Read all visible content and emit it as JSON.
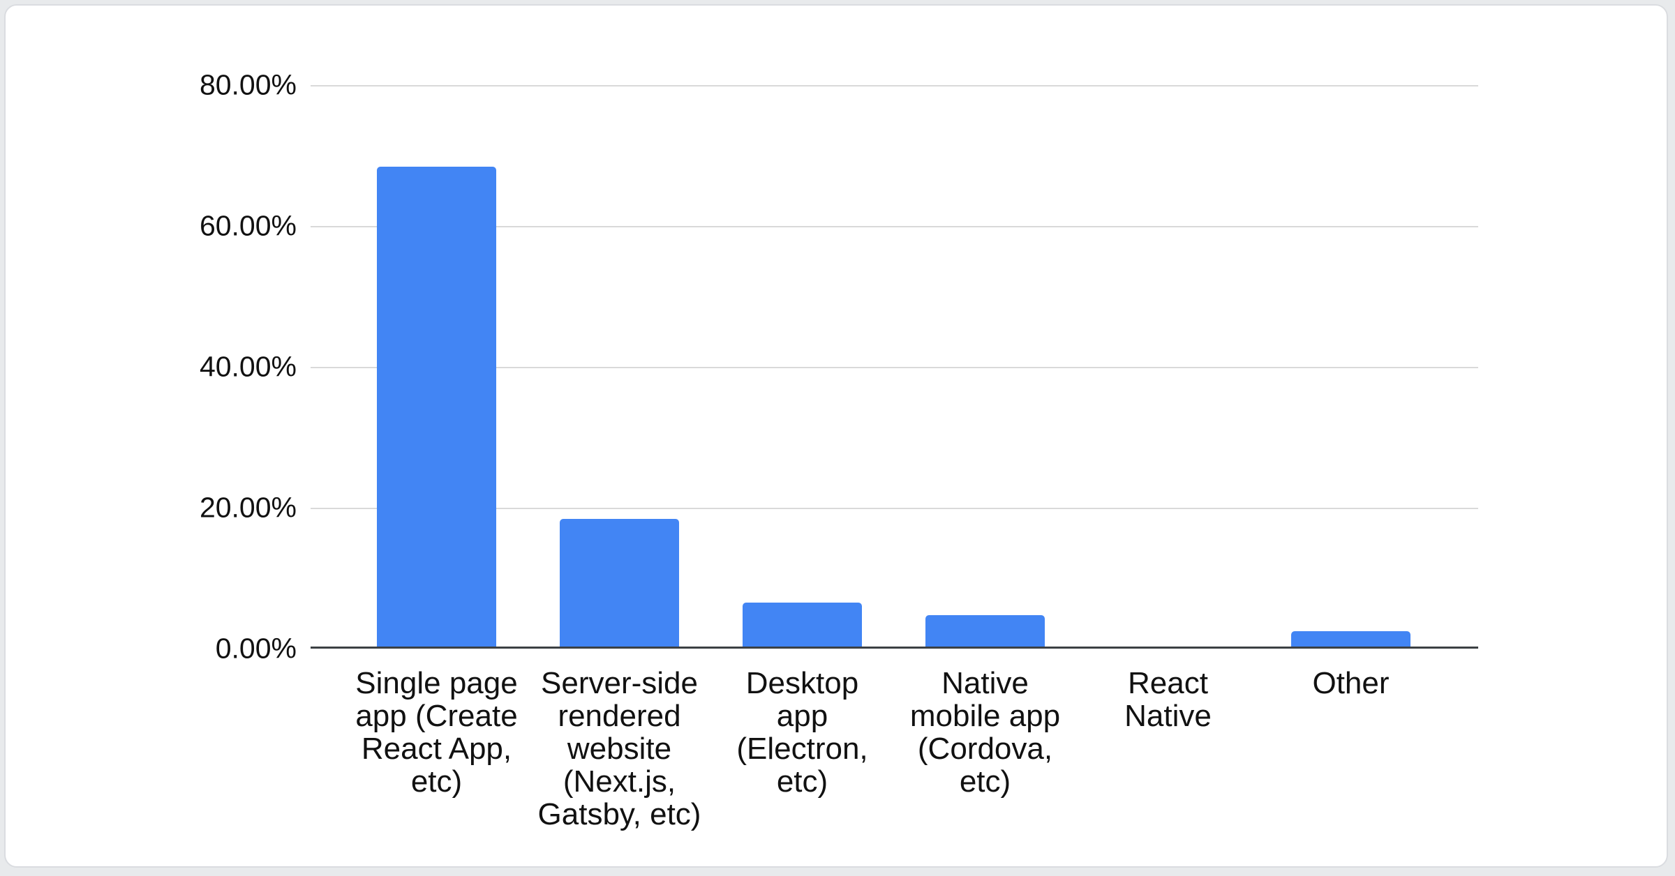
{
  "chart_data": {
    "type": "bar",
    "title": "",
    "xlabel": "",
    "ylabel": "",
    "categories": [
      "Single page app (Create React App, etc)",
      "Server-side rendered website (Next.js, Gatsby, etc)",
      "Desktop app (Electron, etc)",
      "Native mobile app (Cordova, etc)",
      "React Native",
      "Other"
    ],
    "category_label_lines": [
      [
        "Single page",
        "app (Create",
        "React App,",
        "etc)"
      ],
      [
        "Server-side",
        "rendered",
        "website",
        "(Next.js,",
        "Gatsby, etc)"
      ],
      [
        "Desktop",
        "app",
        "(Electron,",
        "etc)"
      ],
      [
        "Native",
        "mobile app",
        "(Cordova,",
        "etc)"
      ],
      [
        "React",
        "Native"
      ],
      [
        "Other"
      ]
    ],
    "values": [
      68.3,
      18.3,
      6.4,
      4.6,
      0.0,
      2.3
    ],
    "value_unit": "%",
    "ylim": [
      0,
      80
    ],
    "y_ticks": [
      {
        "value": 0,
        "label": "0.00%"
      },
      {
        "value": 20,
        "label": "20.00%"
      },
      {
        "value": 40,
        "label": "40.00%"
      },
      {
        "value": 60,
        "label": "60.00%"
      },
      {
        "value": 80,
        "label": "80.00%"
      }
    ],
    "grid": true,
    "legend": "none",
    "series_color": "#4285f4"
  },
  "colors": {
    "bar": "#4285f4",
    "axis_line": "#3c4043",
    "gridline": "#d9d9d9",
    "label_text": "#111111",
    "card_background": "#ffffff",
    "card_border": "#dadce0",
    "page_background": "#e8eaec"
  }
}
